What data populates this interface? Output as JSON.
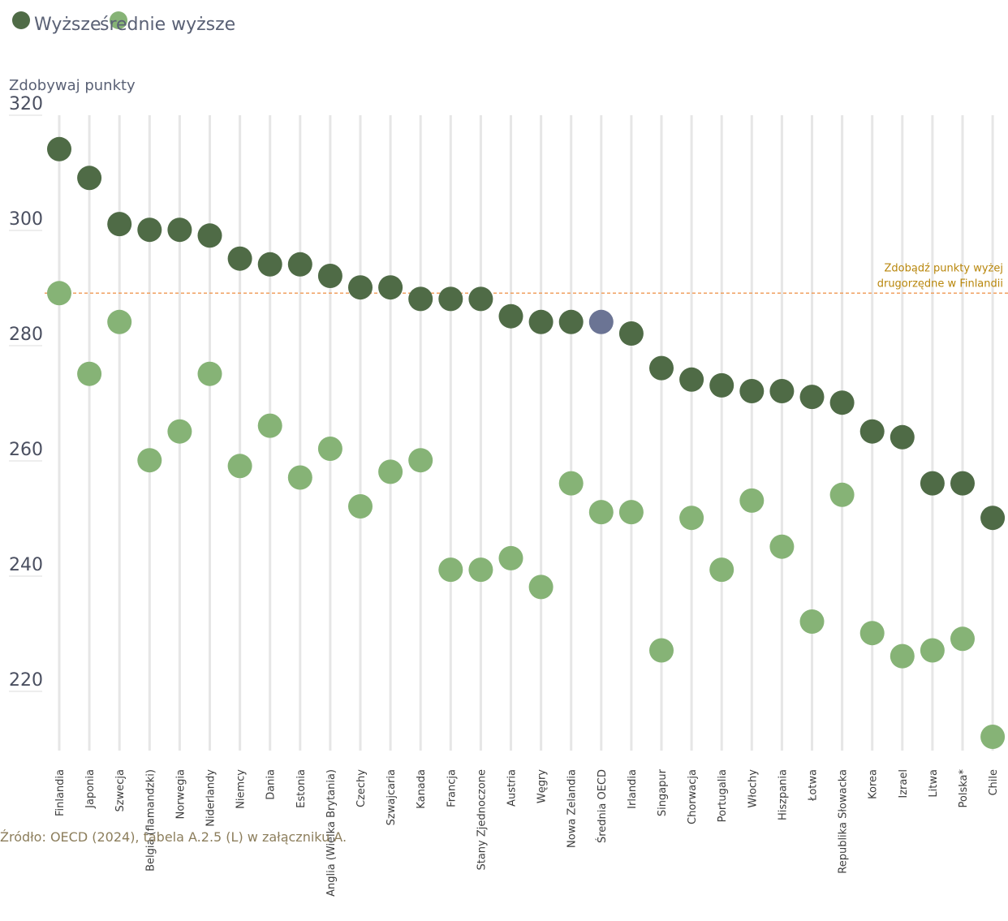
{
  "colors": {
    "higher": "#4f6b46",
    "secondary": "#86b376",
    "highlight": "#6b7494",
    "gridline": "#e6e6e6",
    "reference": "#f0a060"
  },
  "legend": {
    "higher_label": "Wyższe",
    "secondary_label": "średnie wyższe"
  },
  "source": "Źródło: OECD (2024), tabela A.2.5 (L) w załączniku A.",
  "chart_data": {
    "type": "scatter",
    "ylabel": "Zdobywaj punkty",
    "ylim": [
      208,
      320
    ],
    "yticks": [
      220,
      240,
      260,
      280,
      300,
      320
    ],
    "reference_line": {
      "value": 287,
      "label_line1": "Zdobądź punkty wyżej",
      "label_line2": "drugorzędne w Finlandii"
    },
    "highlight_category": "Średnia OECD",
    "categories": [
      "Finlandia",
      "Japonia",
      "Szwecja",
      "Belgia (flamandzki)",
      "Norwegia",
      "Niderlandy",
      "Niemcy",
      "Dania",
      "Estonia",
      "Anglia (Wielka Brytania)",
      "Czechy",
      "Szwajcaria",
      "Kanada",
      "Francja",
      "Stany Zjednoczone",
      "Austria",
      "Węgry",
      "Nowa Zelandia",
      "Średnia OECD",
      "Irlandia",
      "Singapur",
      "Chorwacja",
      "Portugalia",
      "Włochy",
      "Hiszpania",
      "Łotwa",
      "Republika Słowacka",
      "Korea",
      "Izrael",
      "Litwa",
      "Polska*",
      "Chile"
    ],
    "series": [
      {
        "name": "Wyższe",
        "values": [
          312,
          307,
          299,
          298,
          298,
          297,
          293,
          292,
          292,
          290,
          288,
          288,
          286,
          286,
          286,
          283,
          282,
          282,
          282,
          280,
          274,
          272,
          271,
          270,
          270,
          269,
          268,
          263,
          262,
          254,
          254,
          248
        ]
      },
      {
        "name": "średnie wyższe",
        "values": [
          287,
          273,
          282,
          258,
          263,
          273,
          257,
          264,
          255,
          260,
          250,
          256,
          258,
          239,
          239,
          241,
          236,
          254,
          249,
          249,
          225,
          248,
          239,
          251,
          243,
          230,
          252,
          228,
          224,
          225,
          227,
          210
        ]
      }
    ]
  }
}
